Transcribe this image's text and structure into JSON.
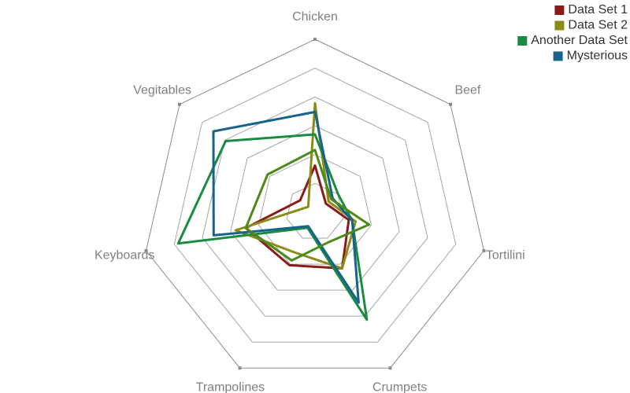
{
  "chart_data": {
    "type": "radar",
    "axes": [
      "Chicken",
      "Beef",
      "Tortilini",
      "Crumpets",
      "Trampolines",
      "Keyboards",
      "Vegitables"
    ],
    "rmax": 10,
    "grid_levels": 6,
    "legend_position": "top-right",
    "series": [
      {
        "name": "Data Set 1",
        "color": "#8b1a1a",
        "values": [
          2.7,
          0.8,
          2.0,
          3.6,
          3.4,
          4.1,
          1.1
        ]
      },
      {
        "name": "Data Set 2",
        "color": "#8b8b18",
        "values": [
          6.3,
          1.0,
          2.4,
          3.6,
          2.6,
          4.7,
          0.5
        ]
      },
      {
        "name": "Another Data Set",
        "color": "#1a8b40",
        "values": [
          4.5,
          1.7,
          2.2,
          6.9,
          1.0,
          8.1,
          6.6
        ]
      },
      {
        "name": "Mysterious",
        "color": "#17638b",
        "values": [
          5.8,
          1.3,
          2.2,
          5.8,
          0.9,
          6.0,
          7.5
        ]
      },
      {
        "name": "",
        "color": "#4a8b1a",
        "values": [
          3.6,
          1.2,
          3.2,
          1.9,
          3.1,
          4.1,
          3.5
        ]
      }
    ]
  }
}
